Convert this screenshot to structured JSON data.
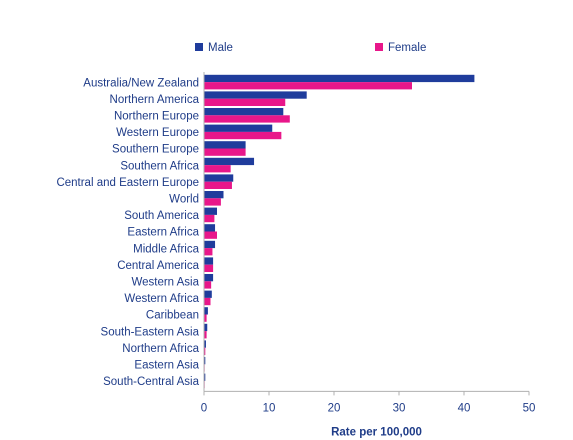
{
  "chart_data": {
    "type": "bar",
    "orientation": "horizontal",
    "categories": [
      "Australia/New Zealand",
      "Northern America",
      "Northern Europe",
      "Western Europe",
      "Southern Europe",
      "Southern Africa",
      "Central and Eastern Europe",
      "World",
      "South America",
      "Eastern Africa",
      "Middle Africa",
      "Central America",
      "Western Asia",
      "Western Africa",
      "Caribbean",
      "South-Eastern Asia",
      "Northern Africa",
      "Eastern Asia",
      "South-Central Asia"
    ],
    "series": [
      {
        "name": "Male",
        "color": "#1f3c9c",
        "values": [
          41.6,
          15.8,
          12.2,
          10.5,
          6.4,
          7.7,
          4.5,
          3.0,
          2.0,
          1.7,
          1.7,
          1.4,
          1.4,
          1.2,
          0.6,
          0.5,
          0.3,
          0.2,
          0.2
        ]
      },
      {
        "name": "Female",
        "color": "#e8178a",
        "values": [
          32.0,
          12.5,
          13.2,
          11.9,
          6.4,
          4.1,
          4.3,
          2.6,
          1.6,
          2.0,
          1.3,
          1.4,
          1.1,
          1.0,
          0.4,
          0.4,
          0.2,
          0.1,
          0.1
        ]
      }
    ],
    "xlim": [
      0,
      50
    ],
    "xticks": [
      0,
      10,
      20,
      30,
      40,
      50
    ],
    "xlabel": "Rate per 100,000",
    "ylabel": "",
    "title": "",
    "grid": false,
    "legend_position": "top"
  },
  "legend": {
    "male_label": "Male",
    "female_label": "Female"
  }
}
